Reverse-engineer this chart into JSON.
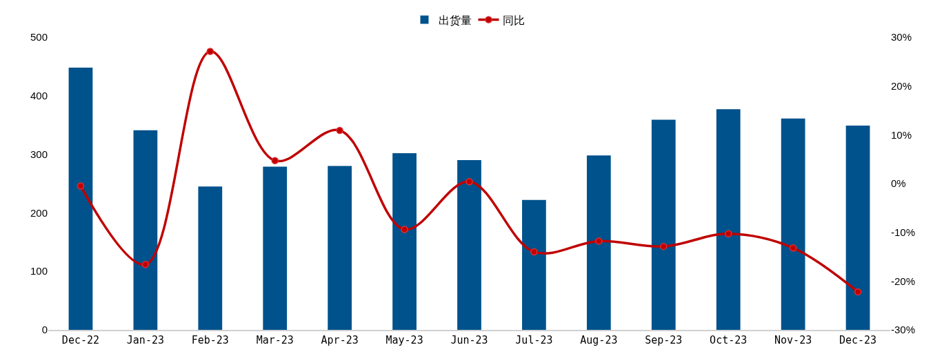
{
  "chart_data": {
    "type": "bar",
    "categories": [
      "Dec-22",
      "Jan-23",
      "Feb-23",
      "Mar-23",
      "Apr-23",
      "May-23",
      "Jun-23",
      "Jul-23",
      "Aug-23",
      "Sep-23",
      "Oct-23",
      "Nov-23",
      "Dec-23"
    ],
    "series": [
      {
        "name": "出货量",
        "color": "#00528c",
        "values": [
          448,
          341,
          245,
          279,
          280,
          302,
          290,
          222,
          298,
          359,
          377,
          361,
          349
        ]
      },
      {
        "name": "同比",
        "type": "line",
        "axis": "y2",
        "color": "#c00000",
        "marker": "circle",
        "values": [
          -0.5,
          -16.6,
          27.1,
          4.7,
          10.9,
          -9.4,
          0.4,
          -14.0,
          -11.8,
          -12.9,
          -10.3,
          -13.2,
          -22.2
        ]
      }
    ],
    "ylim": [
      0,
      500
    ],
    "yticks": [
      0,
      100,
      200,
      300,
      400,
      500
    ],
    "y2lim": [
      -30,
      30
    ],
    "y2ticks": [
      {
        "value": -30,
        "label": "-30%"
      },
      {
        "value": -20,
        "label": "-20%"
      },
      {
        "value": -10,
        "label": "-10%"
      },
      {
        "value": 0,
        "label": "0%"
      },
      {
        "value": 10,
        "label": "10%"
      },
      {
        "value": 20,
        "label": "20%"
      },
      {
        "value": 30,
        "label": "30%"
      }
    ],
    "grid": false,
    "legend": "top"
  }
}
